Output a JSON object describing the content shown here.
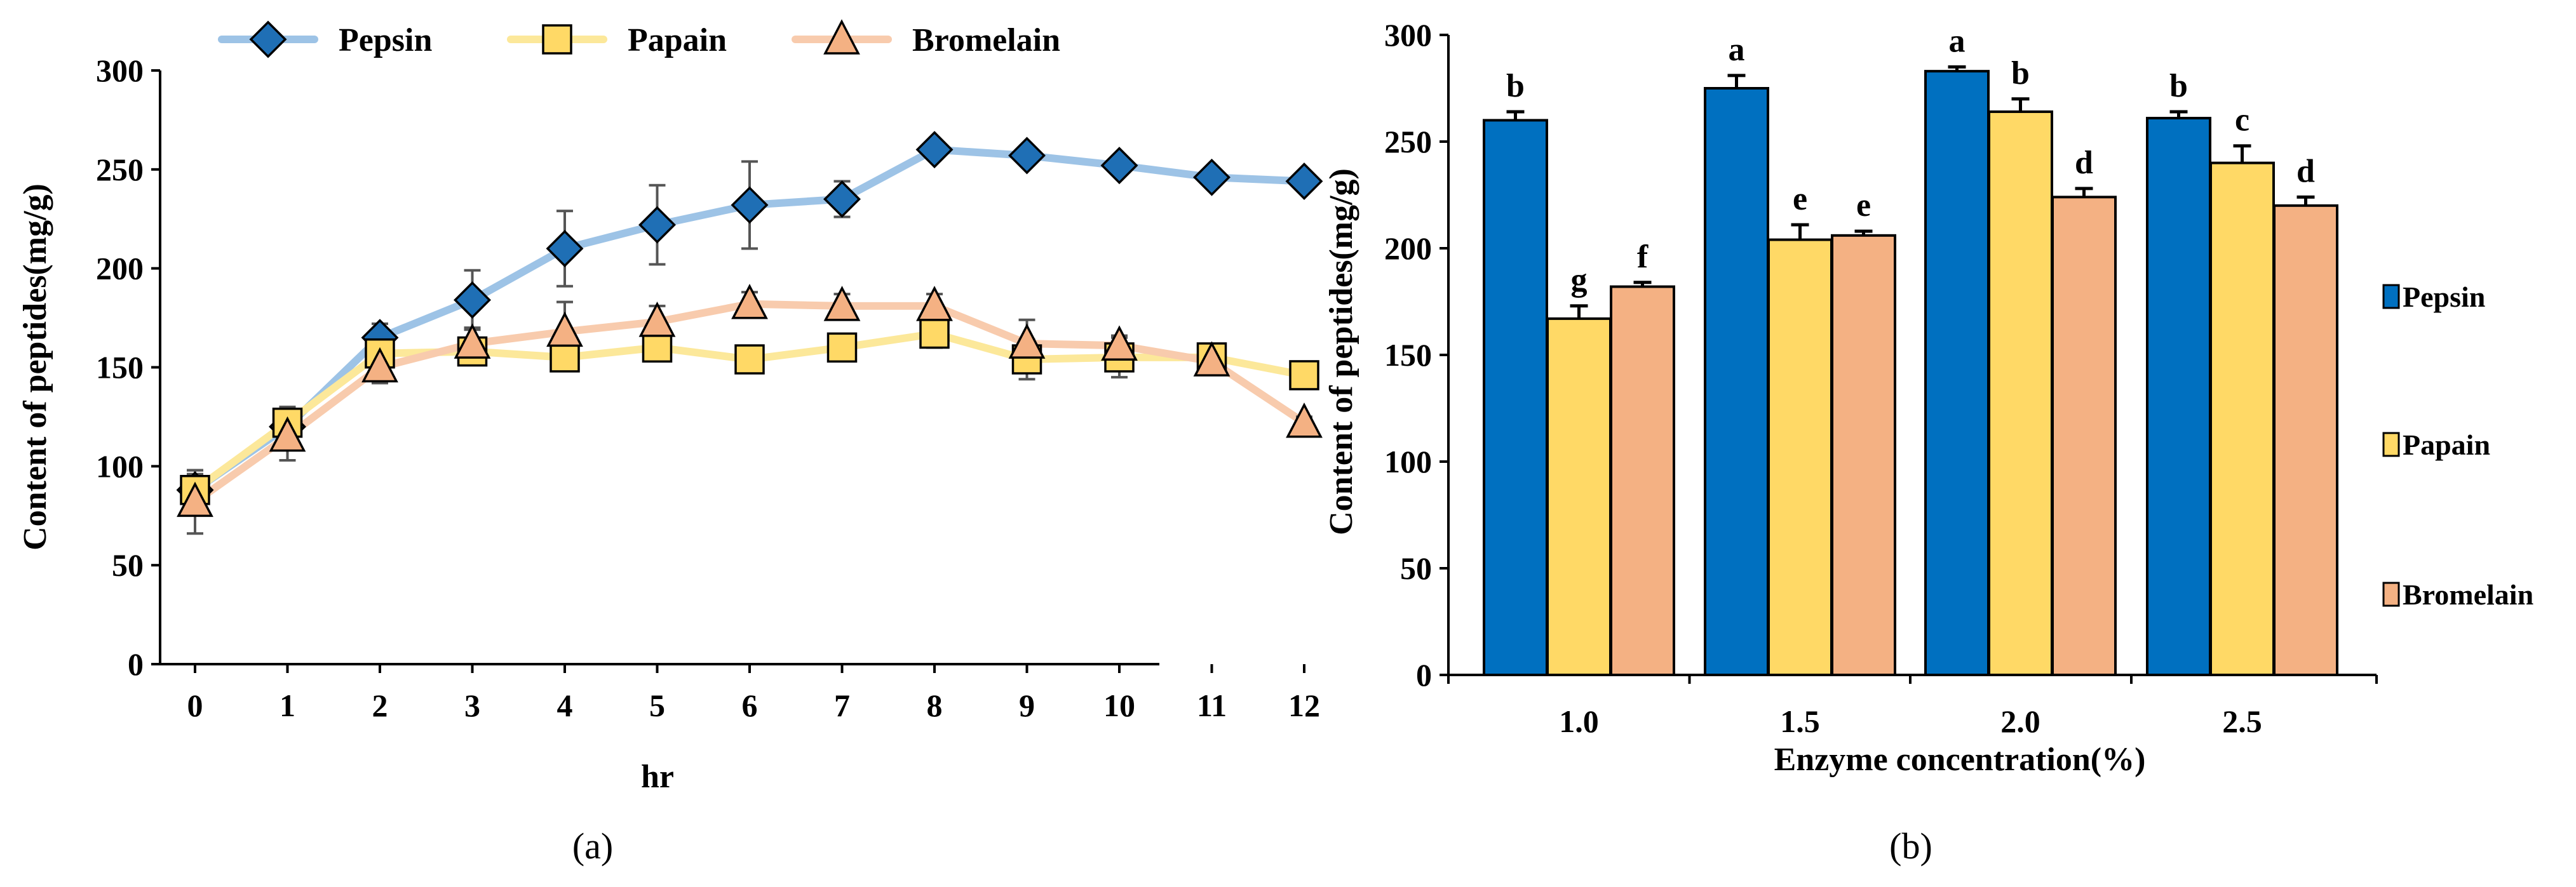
{
  "chart_data": [
    {
      "type": "line",
      "panel_label": "(a)",
      "xlabel": "hr",
      "ylabel": "Content of peptides(mg/g)",
      "ylim": [
        0,
        300
      ],
      "yticks": [
        "0",
        "50",
        "100",
        "150",
        "200",
        "250",
        "300"
      ],
      "x": [
        0,
        1,
        2,
        3,
        4,
        5,
        6,
        7,
        8,
        9,
        10,
        11,
        12
      ],
      "xtick_labels": [
        "0",
        "1",
        "2",
        "3",
        "4",
        "5",
        "6",
        "7",
        "8",
        "9",
        "10",
        "11",
        "12"
      ],
      "legend_position": "top",
      "series": [
        {
          "name": "Pepsin",
          "marker": "diamond",
          "line_color": "#9DC3E6",
          "marker_color": "#1F6FB5",
          "values": [
            88,
            120,
            165,
            184,
            210,
            222,
            232,
            235,
            260,
            257,
            252,
            246,
            244
          ],
          "errors": [
            8,
            10,
            7,
            15,
            19,
            20,
            22,
            9,
            3,
            3,
            3,
            4,
            3
          ],
          "error_color": "#555555"
        },
        {
          "name": "Papain",
          "marker": "square",
          "line_color": "#FCE89A",
          "marker_color": "#FFD966",
          "values": [
            88,
            122,
            157,
            158,
            155,
            160,
            154,
            160,
            167,
            154,
            155,
            155,
            146
          ],
          "errors": [
            10,
            7,
            9,
            5,
            5,
            5,
            4,
            4,
            7,
            10,
            10,
            3,
            3
          ],
          "error_color": "#555555"
        },
        {
          "name": "Bromelain",
          "marker": "triangle",
          "line_color": "#F8CBAD",
          "marker_color": "#F4B183",
          "values": [
            82,
            115,
            150,
            162,
            168,
            173,
            182,
            181,
            181,
            162,
            161,
            153,
            122
          ],
          "errors": [
            16,
            12,
            8,
            8,
            15,
            8,
            6,
            6,
            6,
            12,
            5,
            4,
            3
          ],
          "error_color": "#555555"
        }
      ]
    },
    {
      "type": "bar",
      "panel_label": "(b)",
      "xlabel": "Enzyme concentration(%)",
      "ylabel": "Content of peptides(mg/g)",
      "ylim": [
        0,
        300
      ],
      "yticks": [
        "0",
        "50",
        "100",
        "150",
        "200",
        "250",
        "300"
      ],
      "categories": [
        "1.0",
        "1.5",
        "2.0",
        "2.5"
      ],
      "legend_position": "right",
      "series": [
        {
          "name": "Pepsin",
          "color": "#0070C0",
          "values": [
            260,
            275,
            283,
            261
          ],
          "errors": [
            4,
            6,
            2,
            3
          ],
          "letters": [
            "b",
            "a",
            "a",
            "b"
          ]
        },
        {
          "name": "Papain",
          "color": "#FFD966",
          "values": [
            167,
            204,
            264,
            240
          ],
          "errors": [
            6,
            7,
            6,
            8
          ],
          "letters": [
            "g",
            "e",
            "b",
            "c"
          ]
        },
        {
          "name": "Bromelain",
          "color": "#F4B183",
          "values": [
            182,
            206,
            224,
            220
          ],
          "errors": [
            2,
            2,
            4,
            4
          ],
          "letters": [
            "f",
            "e",
            "d",
            "d"
          ]
        }
      ]
    }
  ]
}
